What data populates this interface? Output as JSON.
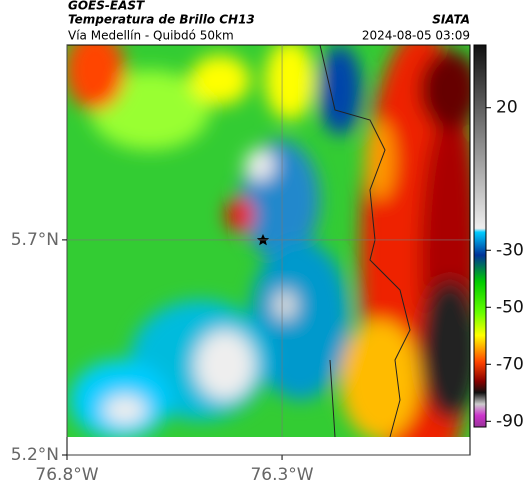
{
  "header": {
    "title": "GOES-EAST",
    "subtitle": "Temperatura de Brillo CH13",
    "location": "Vía Medellín - Quibdó 50km",
    "source": "SIATA",
    "datetime": "2024-08-05 03:09"
  },
  "map": {
    "xlim": [
      -76.8,
      -75.863
    ],
    "ylim": [
      5.2,
      6.153
    ],
    "xticks": [
      {
        "value": -76.8,
        "label": "76.8°W"
      },
      {
        "value": -76.3,
        "label": "76.3°W"
      }
    ],
    "yticks": [
      {
        "value": 5.7,
        "label": "5.7°N"
      },
      {
        "value": 5.2,
        "label": "5.2°N"
      }
    ]
  },
  "colorbar": {
    "clim": [
      -92,
      42
    ],
    "ticks": [
      20,
      -30,
      -50,
      -70,
      -90
    ]
  }
}
